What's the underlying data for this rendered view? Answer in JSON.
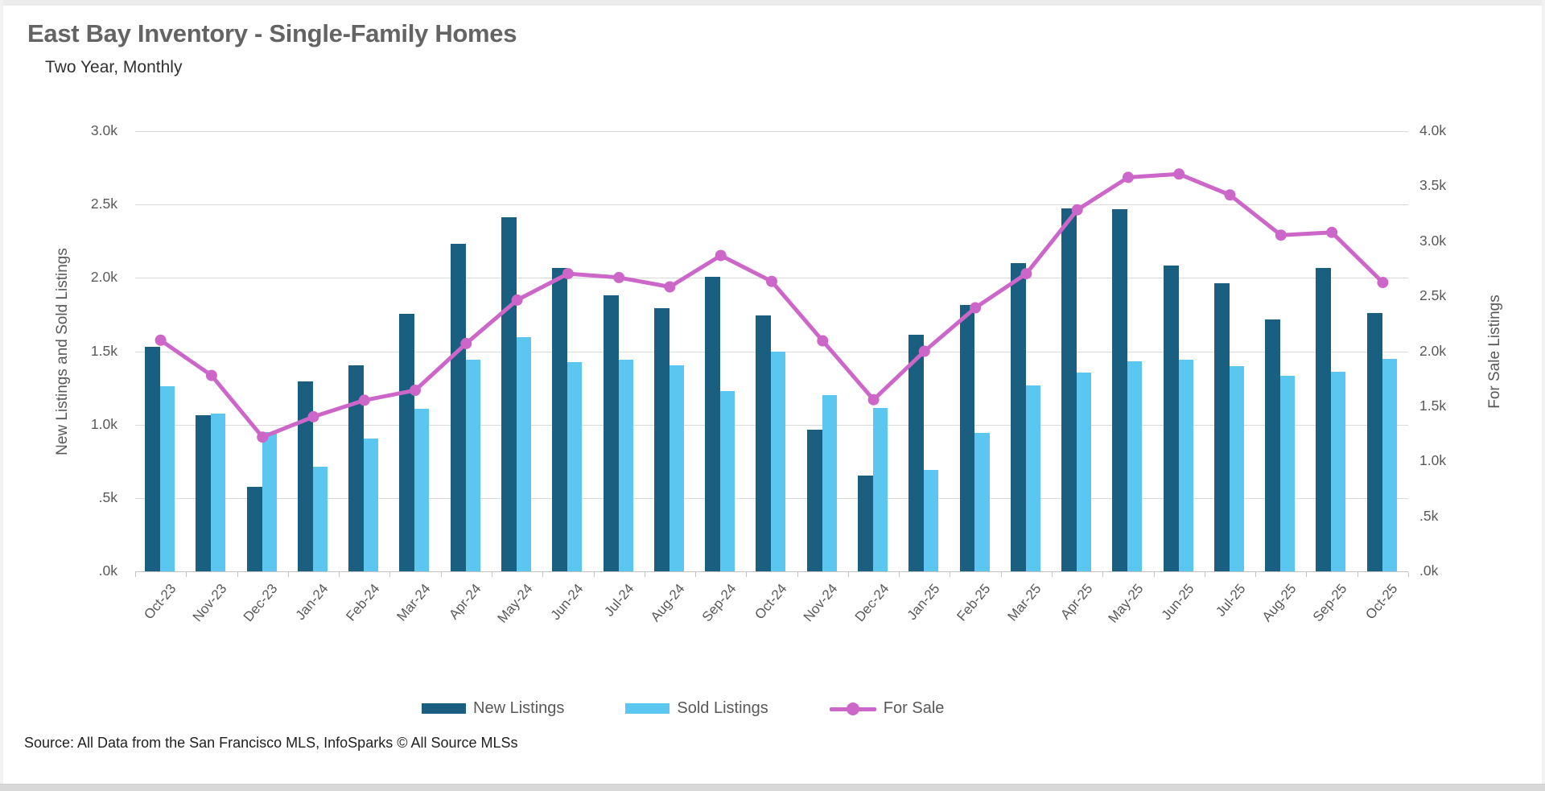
{
  "page": {
    "title": "East Bay Inventory - Single-Family Homes",
    "subtitle": "Two Year, Monthly",
    "source": "Source: All Data from the San Francisco MLS, InfoSparks © All Source MLSs"
  },
  "colors": {
    "new_listings": "#1a5f80",
    "sold_listings": "#5bc6ef",
    "for_sale": "#cd66c9",
    "gridline": "#dadada",
    "axis_text": "#595959"
  },
  "legend": [
    {
      "label": "New Listings",
      "type": "bar",
      "color": "#1a5f80"
    },
    {
      "label": "Sold Listings",
      "type": "bar",
      "color": "#5bc6ef"
    },
    {
      "label": "For Sale",
      "type": "line",
      "color": "#cd66c9"
    }
  ],
  "chart_data": {
    "type": "bar+line",
    "title": "East Bay Inventory - Single-Family Homes",
    "subtitle": "Two Year, Monthly",
    "grid": true,
    "legend_position": "bottom",
    "categories": [
      "Oct-23",
      "Nov-23",
      "Dec-23",
      "Jan-24",
      "Feb-24",
      "Mar-24",
      "Apr-24",
      "May-24",
      "Jun-24",
      "Jul-24",
      "Aug-24",
      "Sep-24",
      "Oct-24",
      "Nov-24",
      "Dec-24",
      "Jan-25",
      "Feb-25",
      "Mar-25",
      "Apr-25",
      "May-25",
      "Jun-25",
      "Jul-25",
      "Aug-25",
      "Sep-25",
      "Oct-25"
    ],
    "series": [
      {
        "name": "New Listings",
        "type": "bar",
        "axis": "left",
        "color": "#1a5f80",
        "values": [
          1530,
          1065,
          575,
          1295,
          1405,
          1755,
          2235,
          2415,
          2070,
          1880,
          1795,
          2010,
          1745,
          965,
          650,
          1615,
          1815,
          2100,
          2475,
          2470,
          2085,
          1965,
          1715,
          2070,
          1760
        ]
      },
      {
        "name": "Sold Listings",
        "type": "bar",
        "axis": "left",
        "color": "#5bc6ef",
        "values": [
          1260,
          1075,
          950,
          715,
          905,
          1110,
          1440,
          1595,
          1425,
          1445,
          1405,
          1230,
          1500,
          1200,
          1115,
          690,
          945,
          1265,
          1355,
          1430,
          1445,
          1400,
          1335,
          1360,
          1450
        ]
      },
      {
        "name": "For Sale",
        "type": "line",
        "axis": "right",
        "color": "#cd66c9",
        "values": [
          2100,
          1780,
          1220,
          1405,
          1555,
          1645,
          2070,
          2465,
          2705,
          2670,
          2585,
          2870,
          2635,
          2095,
          1560,
          2000,
          2395,
          2705,
          3285,
          3580,
          3610,
          3420,
          3055,
          3080,
          2625
        ]
      }
    ],
    "left_axis": {
      "title": "New Listings and Sold Listings",
      "min": 0,
      "max": 3000,
      "tick_labels": [
        "3.0k",
        "2.5k",
        "2.0k",
        "1.5k",
        "1.0k",
        ".5k",
        ".0k"
      ]
    },
    "right_axis": {
      "title": "For Sale Listings",
      "min": 0,
      "max": 4000,
      "tick_labels": [
        "4.0k",
        "3.5k",
        "3.0k",
        "2.5k",
        "2.0k",
        "1.5k",
        "1.0k",
        ".5k",
        ".0k"
      ]
    }
  }
}
